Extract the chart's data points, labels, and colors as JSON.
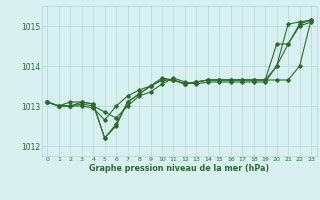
{
  "x": [
    0,
    1,
    2,
    3,
    4,
    5,
    6,
    7,
    8,
    9,
    10,
    11,
    12,
    13,
    14,
    15,
    16,
    17,
    18,
    19,
    20,
    21,
    22,
    23
  ],
  "series1": [
    1013.1,
    1013.0,
    1013.0,
    1013.1,
    1013.05,
    1012.2,
    1012.5,
    1013.1,
    1013.3,
    1013.5,
    1013.7,
    1013.65,
    1013.55,
    1013.6,
    1013.65,
    1013.65,
    1013.65,
    1013.65,
    1013.65,
    1013.65,
    1014.0,
    1014.55,
    1015.0,
    1015.1
  ],
  "series2": [
    1013.1,
    1013.0,
    1013.0,
    1013.05,
    1013.0,
    1012.85,
    1012.7,
    1013.0,
    1013.25,
    1013.35,
    1013.55,
    1013.7,
    1013.6,
    1013.55,
    1013.6,
    1013.6,
    1013.6,
    1013.6,
    1013.6,
    1013.6,
    1014.0,
    1015.05,
    1015.1,
    1015.15
  ],
  "series3": [
    1013.1,
    1013.0,
    1013.0,
    1013.0,
    1012.95,
    1012.65,
    1013.0,
    1013.25,
    1013.4,
    1013.5,
    1013.65,
    1013.65,
    1013.55,
    1013.6,
    1013.65,
    1013.65,
    1013.65,
    1013.65,
    1013.65,
    1013.65,
    1013.65,
    1013.65,
    1014.0,
    1015.15
  ],
  "series4": [
    1013.1,
    1013.0,
    1013.1,
    1013.1,
    1013.05,
    1012.2,
    1012.55,
    1013.1,
    1013.3,
    1013.5,
    1013.65,
    1013.65,
    1013.55,
    1013.6,
    1013.65,
    1013.65,
    1013.65,
    1013.65,
    1013.65,
    1013.65,
    1014.55,
    1014.55,
    1015.05,
    1015.15
  ],
  "line_color": "#2d6a2d",
  "bg_color": "#d8f0f0",
  "grid_color": "#b0d8d8",
  "xlabel": "Graphe pression niveau de la mer (hPa)",
  "ylim": [
    1011.75,
    1015.5
  ],
  "yticks": [
    1012,
    1013,
    1014,
    1015
  ],
  "marker": "D",
  "marker_size": 1.8,
  "line_width": 0.8
}
